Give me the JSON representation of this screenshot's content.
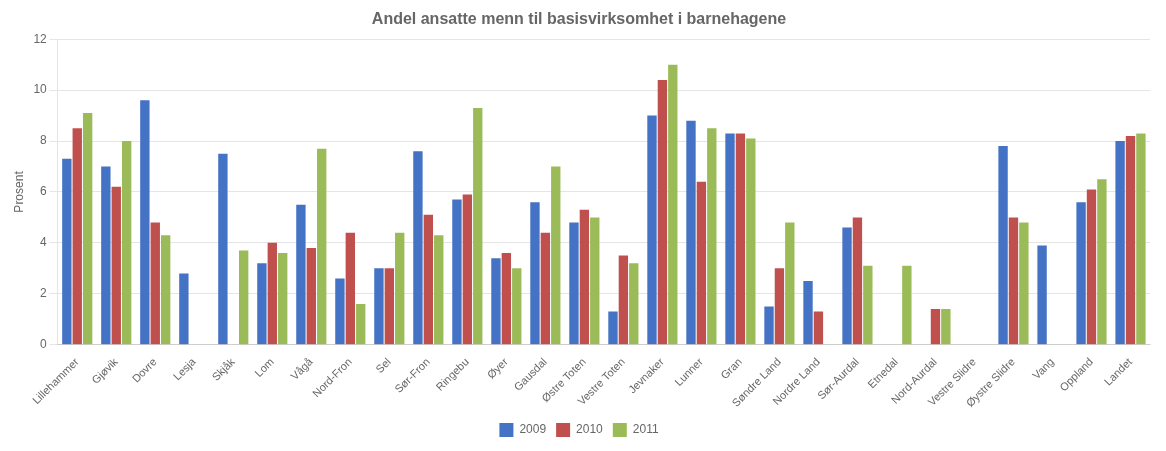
{
  "chart_data": {
    "type": "bar",
    "title": "Andel ansatte menn til basisvirksomhet i barnehagene",
    "ylabel": "Prosent",
    "categories": [
      "Lillehammer",
      "Gjøvik",
      "Dovre",
      "Lesja",
      "Skjåk",
      "Lom",
      "Vågå",
      "Nord-Fron",
      "Sel",
      "Sør-Fron",
      "Ringebu",
      "Øyer",
      "Gausdal",
      "Østre Toten",
      "Vestre Toten",
      "Jevnaker",
      "Lunner",
      "Gran",
      "Søndre Land",
      "Nordre Land",
      "Sør-Aurdal",
      "Etnedal",
      "Nord-Aurdal",
      "Vestre Slidre",
      "Øystre Slidre",
      "Vang",
      "Oppland",
      "Landet"
    ],
    "series": [
      {
        "name": "2009",
        "color": "#4472C4",
        "values": [
          7.3,
          7.0,
          9.6,
          2.8,
          7.5,
          3.2,
          5.5,
          2.6,
          3.0,
          7.6,
          5.7,
          3.4,
          5.6,
          4.8,
          1.3,
          9.0,
          8.8,
          8.3,
          1.5,
          2.5,
          4.6,
          0.0,
          0.0,
          0.0,
          7.8,
          3.9,
          5.6,
          8.0
        ]
      },
      {
        "name": "2010",
        "color": "#C0504D",
        "values": [
          8.5,
          6.2,
          4.8,
          0.0,
          0.0,
          4.0,
          3.8,
          4.4,
          3.0,
          5.1,
          5.9,
          3.6,
          4.4,
          5.3,
          3.5,
          10.4,
          6.4,
          8.3,
          3.0,
          1.3,
          5.0,
          0.0,
          1.4,
          0.0,
          5.0,
          0.0,
          6.1,
          8.2
        ]
      },
      {
        "name": "2011",
        "color": "#9BBB59",
        "values": [
          9.1,
          8.0,
          4.3,
          0.0,
          3.7,
          3.6,
          7.7,
          1.6,
          4.4,
          4.3,
          9.3,
          3.0,
          7.0,
          5.0,
          3.2,
          11.0,
          8.5,
          8.1,
          4.8,
          0.0,
          3.1,
          3.1,
          1.4,
          0.0,
          4.8,
          0.0,
          6.5,
          8.3
        ]
      }
    ],
    "ylim": [
      0,
      12
    ],
    "yticks": [
      0,
      2,
      4,
      6,
      8,
      10,
      12
    ],
    "grid": true,
    "legend": "bottom"
  }
}
